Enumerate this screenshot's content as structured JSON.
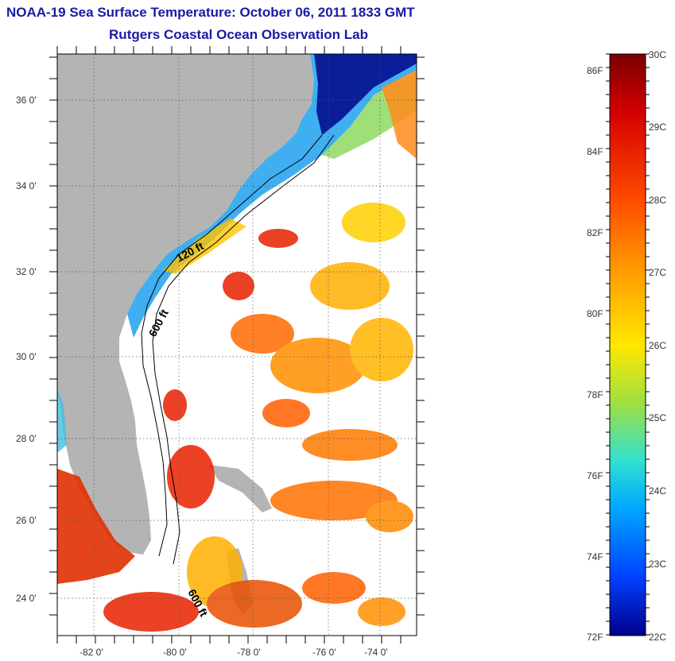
{
  "titles": {
    "line1": "NOAA-19 Sea Surface Temperature:  October 06, 2011 1833 GMT",
    "line2": "Rutgers Coastal Ocean Observation Lab"
  },
  "map": {
    "lat_labels": [
      "36 0'",
      "34 0'",
      "32 0'",
      "30 0'",
      "28 0'",
      "26 0'",
      "24 0'"
    ],
    "lon_labels": [
      "-82 0'",
      "-80 0'",
      "-78 0'",
      "-76 0'",
      "-74 0'"
    ],
    "contour_labels": [
      "120 ft",
      "600 ft",
      "600 ft"
    ],
    "colors": {
      "land": "#b4b4b4",
      "ocean_bg": "#ffffff"
    }
  },
  "colorbar": {
    "f_labels": [
      "86F",
      "84F",
      "82F",
      "80F",
      "78F",
      "76F",
      "74F",
      "72F"
    ],
    "c_labels": [
      "30C",
      "29C",
      "28C",
      "27C",
      "26C",
      "25C",
      "24C",
      "23C",
      "22C"
    ],
    "gradient": [
      "#7a0000",
      "#d40000",
      "#ff4a00",
      "#ff9a00",
      "#ffe800",
      "#9fe040",
      "#30e0d0",
      "#00a8ff",
      "#0040ff",
      "#00008a"
    ]
  }
}
